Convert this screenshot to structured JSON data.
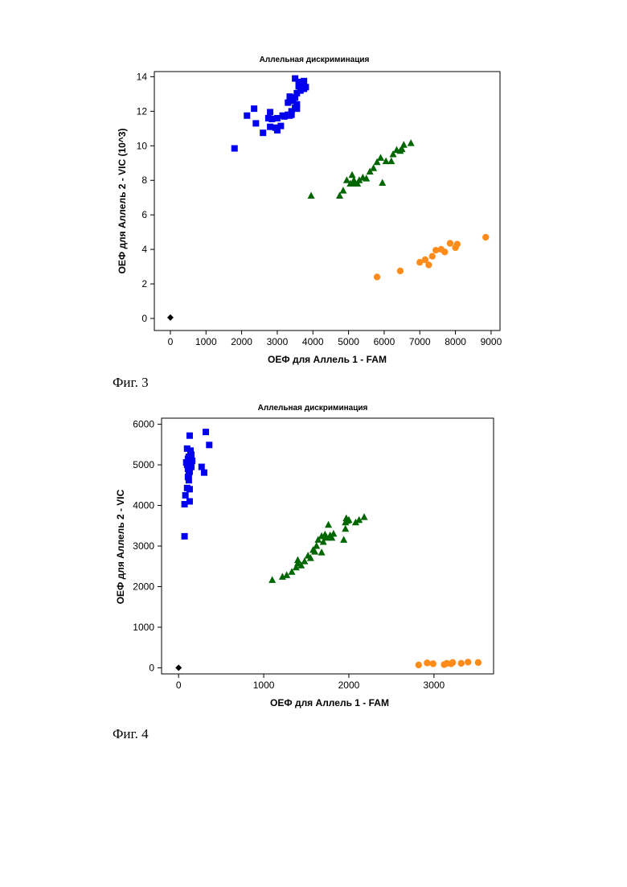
{
  "figures": [
    {
      "caption": "Фиг. 3",
      "chart_data": {
        "type": "scatter",
        "title": "Аллельная дискриминация",
        "xlabel": "ОЕФ для Аллель 1 - FAM",
        "ylabel": "ОЕФ для Аллель 2 - VIC (10^3)",
        "xlim": [
          -450,
          9250
        ],
        "ylim": [
          -0.7,
          14.3
        ],
        "xticks": [
          0,
          1000,
          2000,
          3000,
          4000,
          5000,
          6000,
          7000,
          8000,
          9000
        ],
        "yticks": [
          0,
          2,
          4,
          6,
          8,
          10,
          12,
          14
        ],
        "grid": false,
        "legend": "none",
        "series": [
          {
            "marker": "square",
            "color": "#0000ee",
            "points": [
              [
                1800,
                9.85
              ],
              [
                2150,
                11.75
              ],
              [
                2350,
                12.15
              ],
              [
                2400,
                11.3
              ],
              [
                2600,
                10.75
              ],
              [
                2750,
                11.6
              ],
              [
                2800,
                11.1
              ],
              [
                2800,
                11.95
              ],
              [
                2850,
                11.55
              ],
              [
                2950,
                11.05
              ],
              [
                3000,
                10.9
              ],
              [
                3000,
                11.6
              ],
              [
                3100,
                11.15
              ],
              [
                3150,
                11.75
              ],
              [
                3200,
                11.7
              ],
              [
                3300,
                11.8
              ],
              [
                3300,
                12.5
              ],
              [
                3350,
                11.75
              ],
              [
                3350,
                12.85
              ],
              [
                3400,
                12.0
              ],
              [
                3400,
                11.8
              ],
              [
                3450,
                12.6
              ],
              [
                3500,
                12.2
              ],
              [
                3500,
                12.8
              ],
              [
                3550,
                12.4
              ],
              [
                3550,
                12.15
              ],
              [
                3550,
                13.05
              ],
              [
                3600,
                13.45
              ],
              [
                3600,
                13.7
              ],
              [
                3650,
                13.2
              ],
              [
                3700,
                13.6
              ],
              [
                3750,
                13.3
              ],
              [
                3750,
                13.75
              ],
              [
                3800,
                13.4
              ],
              [
                3500,
                13.9
              ]
            ]
          },
          {
            "marker": "triangle",
            "color": "#006600",
            "points": [
              [
                3950,
                7.1
              ],
              [
                4750,
                7.1
              ],
              [
                4850,
                7.4
              ],
              [
                4950,
                8.0
              ],
              [
                5050,
                7.8
              ],
              [
                5100,
                8.3
              ],
              [
                5150,
                7.8
              ],
              [
                5150,
                8.0
              ],
              [
                5250,
                7.8
              ],
              [
                5300,
                8.0
              ],
              [
                5400,
                8.15
              ],
              [
                5500,
                8.1
              ],
              [
                5600,
                8.5
              ],
              [
                5700,
                8.7
              ],
              [
                5800,
                9.05
              ],
              [
                5900,
                9.3
              ],
              [
                5950,
                7.85
              ],
              [
                6050,
                9.1
              ],
              [
                6200,
                9.1
              ],
              [
                6250,
                9.5
              ],
              [
                6350,
                9.75
              ],
              [
                6450,
                9.7
              ],
              [
                6500,
                9.8
              ],
              [
                6550,
                10.05
              ],
              [
                6750,
                10.15
              ]
            ]
          },
          {
            "marker": "circle",
            "color": "#ff8c1a",
            "points": [
              [
                5800,
                2.4
              ],
              [
                6450,
                2.75
              ],
              [
                7000,
                3.25
              ],
              [
                7150,
                3.4
              ],
              [
                7250,
                3.1
              ],
              [
                7350,
                3.6
              ],
              [
                7450,
                3.95
              ],
              [
                7600,
                4.0
              ],
              [
                7700,
                3.85
              ],
              [
                7850,
                4.35
              ],
              [
                8000,
                4.1
              ],
              [
                8050,
                4.3
              ],
              [
                8850,
                4.7
              ]
            ]
          },
          {
            "marker": "diamond",
            "color": "#000000",
            "points": [
              [
                0,
                0.05
              ]
            ]
          }
        ]
      }
    },
    {
      "caption": "Фиг. 4",
      "chart_data": {
        "type": "scatter",
        "title": "Аллельная дискриминация",
        "xlabel": "ОЕФ для Аллель 1 - FAM",
        "ylabel": "ОЕФ для Аллель 2 - VIC",
        "xlim": [
          -200,
          3700
        ],
        "ylim": [
          -150,
          6150
        ],
        "xticks": [
          0,
          1000,
          2000,
          3000
        ],
        "yticks": [
          0,
          1000,
          2000,
          3000,
          4000,
          5000,
          6000
        ],
        "grid": false,
        "legend": "none",
        "series": [
          {
            "marker": "square",
            "color": "#0000ee",
            "points": [
              [
                70,
                3240
              ],
              [
                70,
                4030
              ],
              [
                80,
                4250
              ],
              [
                90,
                5060
              ],
              [
                100,
                4430
              ],
              [
                100,
                5000
              ],
              [
                100,
                5400
              ],
              [
                110,
                4700
              ],
              [
                110,
                4900
              ],
              [
                110,
                5150
              ],
              [
                120,
                4620
              ],
              [
                120,
                4780
              ],
              [
                120,
                5200
              ],
              [
                130,
                4100
              ],
              [
                130,
                4400
              ],
              [
                130,
                4830
              ],
              [
                130,
                5060
              ],
              [
                130,
                5720
              ],
              [
                140,
                5000
              ],
              [
                140,
                5350
              ],
              [
                150,
                4950
              ],
              [
                150,
                5250
              ],
              [
                160,
                5100
              ],
              [
                270,
                4950
              ],
              [
                300,
                4810
              ],
              [
                320,
                5810
              ],
              [
                360,
                5490
              ]
            ]
          },
          {
            "marker": "triangle",
            "color": "#006600",
            "points": [
              [
                1100,
                2160
              ],
              [
                1220,
                2240
              ],
              [
                1270,
                2280
              ],
              [
                1330,
                2360
              ],
              [
                1380,
                2470
              ],
              [
                1400,
                2570
              ],
              [
                1400,
                2650
              ],
              [
                1440,
                2520
              ],
              [
                1480,
                2620
              ],
              [
                1520,
                2760
              ],
              [
                1550,
                2700
              ],
              [
                1580,
                2900
              ],
              [
                1600,
                2860
              ],
              [
                1620,
                3000
              ],
              [
                1640,
                3150
              ],
              [
                1680,
                2840
              ],
              [
                1680,
                3240
              ],
              [
                1700,
                3100
              ],
              [
                1720,
                3280
              ],
              [
                1740,
                3200
              ],
              [
                1760,
                3520
              ],
              [
                1780,
                3260
              ],
              [
                1800,
                3200
              ],
              [
                1820,
                3300
              ],
              [
                1940,
                3150
              ],
              [
                1960,
                3420
              ],
              [
                1960,
                3580
              ],
              [
                1970,
                3680
              ],
              [
                1980,
                3620
              ],
              [
                2000,
                3640
              ],
              [
                2080,
                3580
              ],
              [
                2120,
                3640
              ],
              [
                2180,
                3710
              ]
            ]
          },
          {
            "marker": "circle",
            "color": "#ff8c1a",
            "points": [
              [
                2820,
                70
              ],
              [
                2920,
                120
              ],
              [
                2990,
                100
              ],
              [
                3120,
                80
              ],
              [
                3150,
                110
              ],
              [
                3200,
                100
              ],
              [
                3220,
                130
              ],
              [
                3320,
                110
              ],
              [
                3400,
                140
              ],
              [
                3520,
                130
              ]
            ]
          },
          {
            "marker": "diamond",
            "color": "#000000",
            "points": [
              [
                0,
                0
              ]
            ]
          }
        ]
      }
    }
  ]
}
